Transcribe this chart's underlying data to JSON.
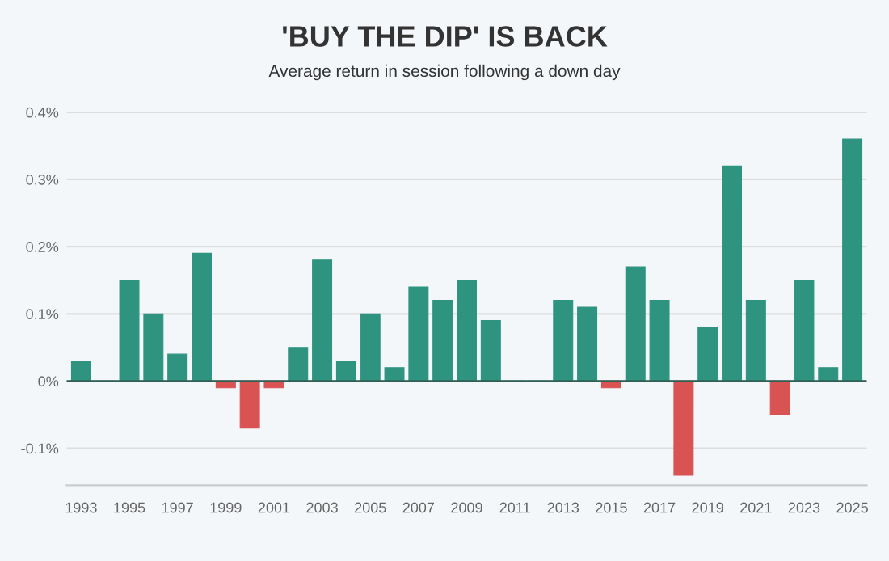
{
  "chart_data": {
    "type": "bar",
    "title": "'BUY THE DIP' IS BACK",
    "subtitle": "Average return in session following a down day",
    "categories": [
      "1993",
      null,
      "1995",
      null,
      "1997",
      null,
      "1999",
      null,
      "2001",
      null,
      "2003",
      null,
      "2005",
      null,
      "2007",
      null,
      "2009",
      null,
      "2011",
      null,
      "2013",
      null,
      "2015",
      null,
      "2017",
      null,
      "2019",
      null,
      "2021",
      null,
      "2023",
      null,
      "2025"
    ],
    "values": [
      0.03,
      0,
      0.15,
      0.1,
      0.04,
      0.19,
      -0.01,
      -0.07,
      -0.01,
      0.05,
      0.18,
      0.03,
      0.1,
      0.02,
      0.14,
      0.12,
      0.15,
      0.09,
      0,
      0,
      0.12,
      0.11,
      -0.01,
      0.17,
      0.12,
      -0.14,
      0.08,
      0.32,
      0.12,
      -0.05,
      0.15,
      0.02,
      0.36
    ],
    "colors": [
      "#2e9480",
      "#2e9480",
      "#2e9480",
      "#2e9480",
      "#2e9480",
      "#2e9480",
      "#d95353",
      "#d95353",
      "#d95353",
      "#2e9480",
      "#2e9480",
      "#2e9480",
      "#2e9480",
      "#2e9480",
      "#2e9480",
      "#2e9480",
      "#2e9480",
      "#2e9480",
      "#2e9480",
      "#2e9480",
      "#2e9480",
      "#2e9480",
      "#d95353",
      "#2e9480",
      "#2e9480",
      "#d95353",
      "#2e9480",
      "#2e9480",
      "#2e9480",
      "#d95353",
      "#2e9480",
      "#2e9480",
      "#2e9480"
    ],
    "ylim": [
      -0.155,
      0.4
    ],
    "yticks": [
      {
        "value": -0.1,
        "label": "-0.1%"
      },
      {
        "value": 0,
        "label": "0%"
      },
      {
        "value": 0.1,
        "label": "0.1%"
      },
      {
        "value": 0.2,
        "label": "0.2%"
      },
      {
        "value": 0.3,
        "label": "0.3%"
      },
      {
        "value": 0.4,
        "label": "0.4%"
      }
    ],
    "grid": "y"
  }
}
